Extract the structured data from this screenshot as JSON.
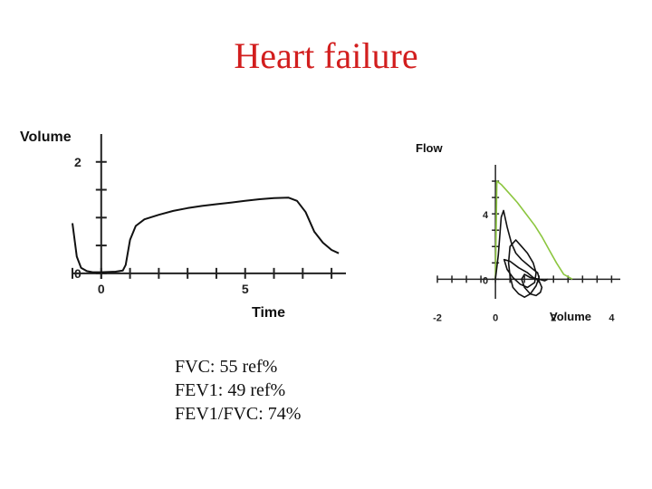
{
  "title": "Heart failure",
  "results": [
    "FVC: 55 ref%",
    "FEV1: 49 ref%",
    "FEV1/FVC: 74%"
  ],
  "colors": {
    "title": "#d21e1e",
    "curve": "#111111",
    "predicted_curve": "#8cc63f"
  },
  "chart_data": [
    {
      "type": "line",
      "title": "",
      "xlabel": "Time",
      "ylabel": "Volume",
      "xlim": [
        -1,
        8.5
      ],
      "ylim": [
        -0.1,
        2.5
      ],
      "x_tick_labels": [
        {
          "value": 0,
          "label": "0"
        },
        {
          "value": 5,
          "label": "5"
        }
      ],
      "y_tick_labels": [
        {
          "value": 0,
          "label": "0"
        },
        {
          "value": 2,
          "label": "2"
        }
      ],
      "x_minor_ticks": [
        -1,
        0,
        1,
        2,
        3,
        4,
        5,
        6,
        7,
        8
      ],
      "y_minor_ticks": [
        0,
        0.5,
        1,
        1.5,
        2
      ],
      "series": [
        {
          "x": [
            -1,
            -0.85,
            -0.7,
            -0.5,
            -0.3,
            0,
            0.5,
            0.75,
            0.85,
            1,
            1.2,
            1.5,
            2,
            2.5,
            3,
            3.5,
            4,
            4.5,
            5,
            5.5,
            6,
            6.5,
            6.8,
            7.1,
            7.4,
            7.7,
            8,
            8.25
          ],
          "y": [
            0.9,
            0.3,
            0.1,
            0.04,
            0.02,
            0.02,
            0.03,
            0.05,
            0.15,
            0.6,
            0.85,
            0.97,
            1.05,
            1.12,
            1.17,
            1.21,
            1.24,
            1.27,
            1.3,
            1.33,
            1.35,
            1.36,
            1.3,
            1.1,
            0.75,
            0.55,
            0.42,
            0.36
          ]
        }
      ]
    },
    {
      "type": "line",
      "title": "",
      "xlabel": "Volume",
      "ylabel": "Flow",
      "xlim": [
        -2,
        4.3
      ],
      "ylim": [
        -1.2,
        7
      ],
      "x_tick_labels": [
        {
          "value": -2,
          "label": "-2"
        },
        {
          "value": 0,
          "label": "0"
        },
        {
          "value": 2,
          "label": "2"
        },
        {
          "value": 4,
          "label": "4"
        }
      ],
      "y_tick_labels": [
        {
          "value": 0,
          "label": "0"
        },
        {
          "value": 4,
          "label": "4"
        }
      ],
      "x_minor_ticks": [
        -2,
        -1.5,
        -1,
        -0.5,
        0,
        0.5,
        1,
        1.5,
        2,
        2.5,
        3,
        3.5,
        4
      ],
      "y_minor_ticks": [
        0,
        1,
        2,
        3,
        4,
        5,
        6
      ],
      "series": [
        {
          "name": "",
          "x": [
            0,
            0.05,
            0.2,
            0.45,
            0.75,
            1.05,
            1.35,
            1.6,
            1.85,
            2.1,
            2.35,
            2.65
          ],
          "y": [
            0,
            6,
            5.8,
            5.3,
            4.7,
            4.0,
            3.3,
            2.6,
            1.8,
            1.0,
            0.3,
            0
          ],
          "color": "#8cc63f"
        },
        {
          "name": "",
          "x": [
            0,
            0.1,
            0.2,
            0.28,
            0.4,
            0.55,
            0.7,
            0.9,
            1.1,
            1.3,
            1.45,
            1.5,
            1.4,
            1.2,
            1.0,
            0.8,
            0.6,
            0.5,
            0.45,
            0.5,
            0.7,
            0.9,
            1.1,
            1.3,
            1.4,
            1.35,
            1.1,
            0.85,
            0.6,
            0.4,
            0.3,
            0.5,
            0.8,
            1.1,
            1.3,
            1.5,
            1.6,
            1.55,
            1.4,
            1.2,
            1.0,
            0.9,
            1.0,
            1.2,
            1.5,
            1.7,
            1.8
          ],
          "y": [
            0,
            1.5,
            3.8,
            4.2,
            3.2,
            2.2,
            1.6,
            1.2,
            0.9,
            0.6,
            0.4,
            0.1,
            -0.4,
            -0.9,
            -1.1,
            -0.9,
            -0.5,
            0.2,
            1.0,
            2.0,
            2.4,
            2.0,
            1.6,
            1.0,
            0.4,
            -0.2,
            -0.5,
            -0.3,
            0.1,
            0.6,
            1.2,
            1.1,
            0.7,
            0.4,
            0.1,
            -0.1,
            -0.5,
            -0.8,
            -1.0,
            -0.9,
            -0.5,
            0,
            0.3,
            0.1,
            0,
            -0.1,
            0
          ],
          "color": "#111111"
        }
      ]
    }
  ]
}
